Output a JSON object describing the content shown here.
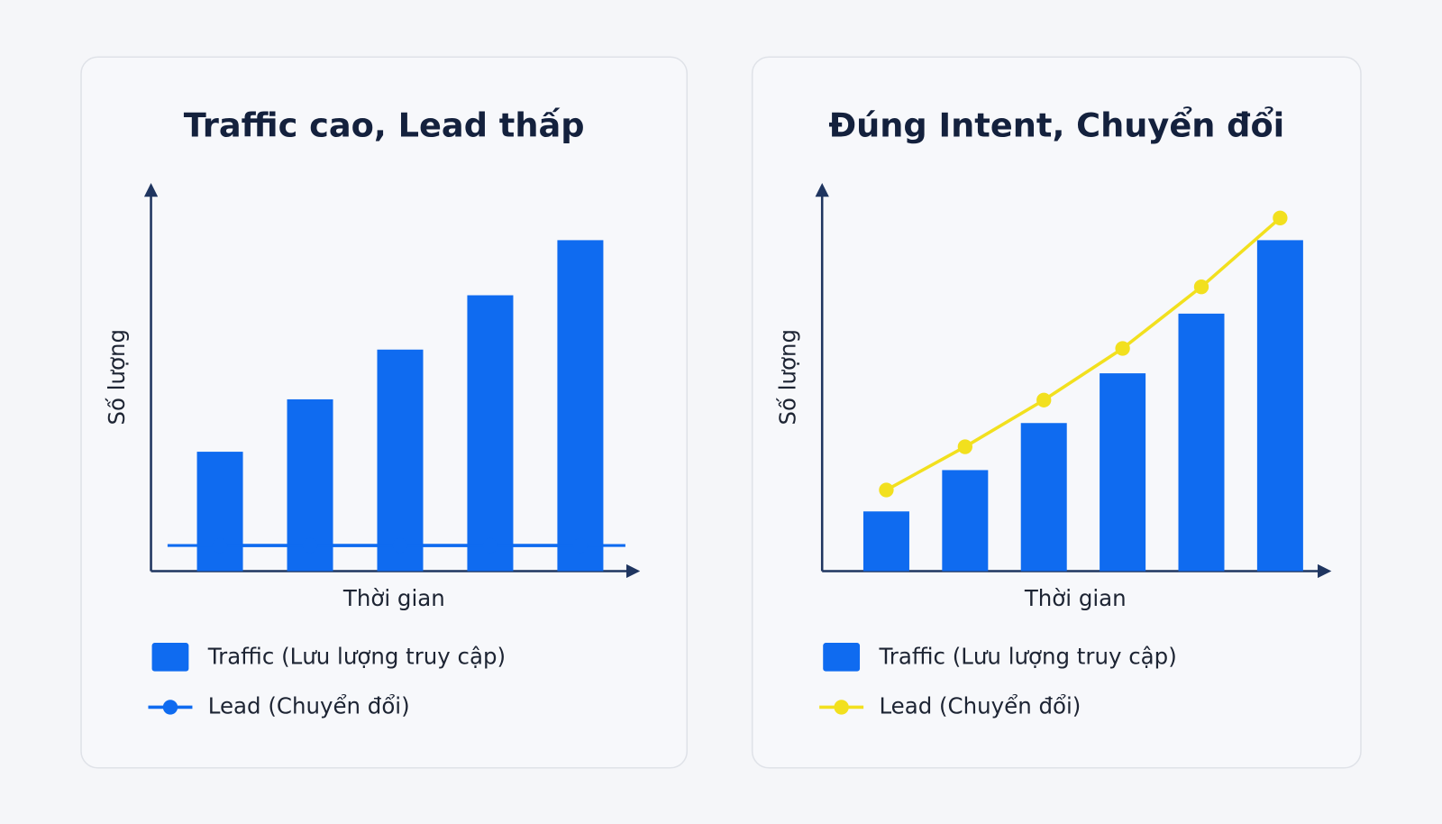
{
  "chart_data": [
    {
      "type": "bar",
      "title": "Traffic cao, Lead thấp",
      "x_label": "Thời gian",
      "y_label": "Số lượng",
      "categories": [
        null,
        null,
        null,
        null,
        null
      ],
      "series": [
        {
          "name": "Traffic (Lưu lượng truy cập)",
          "color": "#0f6bf0",
          "values": [
            31.2,
            44.9,
            57.9,
            72.1,
            86.5
          ]
        },
        {
          "name": "Lead (Chuyển đổi)",
          "type": "line",
          "color": "#0f6bf0",
          "values": [
            6.7,
            6.7,
            6.7,
            6.7,
            6.7
          ]
        }
      ],
      "ylim": [
        0,
        100
      ]
    },
    {
      "type": "bar",
      "title": "Đúng Intent, Chuyển đổi",
      "x_label": "Thời gian",
      "y_label": "Số lượng",
      "categories": [
        null,
        null,
        null,
        null,
        null,
        null
      ],
      "series": [
        {
          "name": "Traffic (Lưu lượng truy cập)",
          "color": "#0f6bf0",
          "values": [
            15.6,
            26.4,
            38.7,
            51.7,
            67.3,
            86.5
          ]
        },
        {
          "name": "Lead (Chuyển đổi)",
          "type": "line",
          "color": "#f2e01e",
          "values": [
            21.2,
            32.5,
            44.7,
            58.2,
            74.3,
            92.3
          ]
        }
      ],
      "ylim": [
        0,
        100
      ]
    }
  ]
}
